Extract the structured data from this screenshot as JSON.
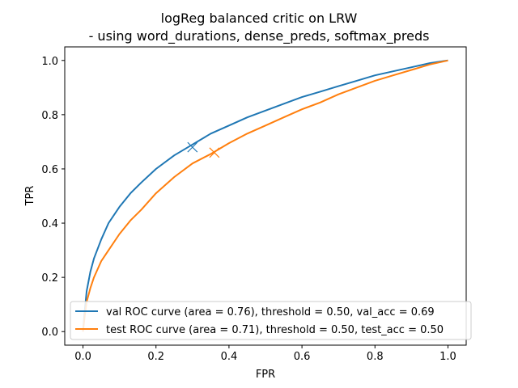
{
  "chart_data": {
    "type": "line",
    "title": "logReg balanced critic on LRW",
    "subtitle": "- using word_durations, dense_preds, softmax_preds",
    "xlabel": "FPR",
    "ylabel": "TPR",
    "xlim": [
      -0.05,
      1.05
    ],
    "ylim": [
      -0.05,
      1.05
    ],
    "xticks": [
      0.0,
      0.2,
      0.4,
      0.6,
      0.8,
      1.0
    ],
    "xtick_labels": [
      "0.0",
      "0.2",
      "0.4",
      "0.6",
      "0.8",
      "1.0"
    ],
    "yticks": [
      0.0,
      0.2,
      0.4,
      0.6,
      0.8,
      1.0
    ],
    "ytick_labels": [
      "0.0",
      "0.2",
      "0.4",
      "0.6",
      "0.8",
      "1.0"
    ],
    "grid": false,
    "legend_position": "lower-left",
    "series": [
      {
        "name": "val ROC curve (area = 0.76), threshold = 0.50, val_acc = 0.69",
        "color": "#1f77b4",
        "x": [
          0.0,
          0.005,
          0.01,
          0.02,
          0.03,
          0.05,
          0.07,
          0.1,
          0.13,
          0.16,
          0.2,
          0.25,
          0.3,
          0.35,
          0.4,
          0.45,
          0.5,
          0.55,
          0.6,
          0.65,
          0.7,
          0.75,
          0.8,
          0.85,
          0.9,
          0.95,
          1.0
        ],
        "y": [
          0.0,
          0.08,
          0.15,
          0.22,
          0.27,
          0.34,
          0.4,
          0.46,
          0.51,
          0.55,
          0.6,
          0.65,
          0.69,
          0.73,
          0.76,
          0.79,
          0.815,
          0.84,
          0.865,
          0.885,
          0.905,
          0.925,
          0.945,
          0.96,
          0.975,
          0.99,
          1.0
        ],
        "marker": {
          "x": 0.3,
          "y": 0.68
        }
      },
      {
        "name": "test ROC curve (area = 0.71), threshold = 0.50, test_acc = 0.50",
        "color": "#ff7f0e",
        "x": [
          0.0,
          0.005,
          0.01,
          0.02,
          0.03,
          0.05,
          0.07,
          0.1,
          0.13,
          0.16,
          0.2,
          0.25,
          0.3,
          0.35,
          0.4,
          0.45,
          0.5,
          0.55,
          0.6,
          0.65,
          0.7,
          0.75,
          0.8,
          0.85,
          0.9,
          0.95,
          1.0
        ],
        "y": [
          0.0,
          0.06,
          0.11,
          0.16,
          0.2,
          0.26,
          0.3,
          0.36,
          0.41,
          0.45,
          0.51,
          0.57,
          0.62,
          0.655,
          0.695,
          0.73,
          0.76,
          0.79,
          0.82,
          0.845,
          0.875,
          0.9,
          0.925,
          0.945,
          0.965,
          0.985,
          1.0
        ],
        "marker": {
          "x": 0.36,
          "y": 0.66
        }
      }
    ]
  }
}
